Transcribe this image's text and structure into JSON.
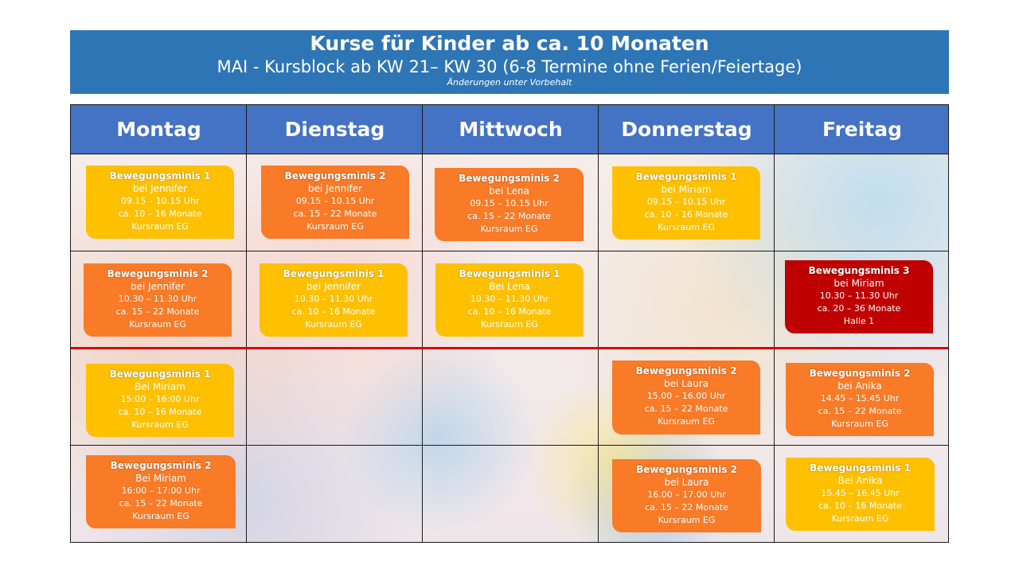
{
  "header": {
    "title": "Kurse für Kinder ab ca. 10 Monaten",
    "subtitle": "MAI - Kursblock ab KW 21– KW 30  (6-8 Termine ohne Ferien/Feiertage)",
    "note": "Änderungen unter Vorbehalt"
  },
  "days": [
    "Montag",
    "Dienstag",
    "Mittwoch",
    "Donnerstag",
    "Freitag"
  ],
  "colors": {
    "yellow": "#ffc000",
    "orange": "#f97a27",
    "red": "#c00000",
    "header": "#2e75b6",
    "day_header": "#4472c4"
  },
  "courses": [
    {
      "name": "Bewegungsminis 1",
      "trainer": "bei Jennifer",
      "time": "09.15 – 10.15 Uhr",
      "age": "ca. 10 – 16 Monate",
      "room": "Kursraum EG"
    },
    {
      "name": "Bewegungsminis 2",
      "trainer": "bei Jennifer",
      "time": "09.15 – 10.15 Uhr",
      "age": "ca. 15 – 22 Monate",
      "room": "Kursraum EG"
    },
    {
      "name": "Bewegungsminis 2",
      "trainer": "bei Lena",
      "time": "09.15 – 10.15 Uhr",
      "age": "ca. 15 – 22 Monate",
      "room": "Kursraum EG"
    },
    {
      "name": "Bewegungsminis 1",
      "trainer": "bei Miriam",
      "time": "09.15 – 10.15 Uhr",
      "age": "ca. 10 – 16 Monate",
      "room": "Kursraum EG"
    },
    {
      "name": "Bewegungsminis 2",
      "trainer": "bei Jennifer",
      "time": "10.30 – 11.30 Uhr",
      "age": "ca. 15 – 22 Monate",
      "room": "Kursraum EG"
    },
    {
      "name": "Bewegungsminis 1",
      "trainer": "bei Jennifer",
      "time": "10.30 – 11.30 Uhr",
      "age": "ca. 10 – 16 Monate",
      "room": "Kursraum EG"
    },
    {
      "name": "Bewegungsminis 1",
      "trainer": "Bei Lena",
      "time": "10.30 – 11.30 Uhr",
      "age": "ca. 10 – 16 Monate",
      "room": "Kursraum EG"
    },
    {
      "name": "Bewegungsminis 3",
      "trainer": "bei Miriam",
      "time": "10.30 – 11.30 Uhr",
      "age": "ca. 20 – 36 Monate",
      "room": "Halle 1"
    },
    {
      "name": "Bewegungsminis 1",
      "trainer": "Bei Miriam",
      "time": "15:00 – 16:00 Uhr",
      "age": "ca. 10 – 16 Monate",
      "room": "Kursraum EG"
    },
    {
      "name": "Bewegungsminis 2",
      "trainer": "bei Laura",
      "time": "15.00 – 16.00 Uhr",
      "age": "ca. 15 – 22 Monate",
      "room": "Kursraum EG"
    },
    {
      "name": "Bewegungsminis 2",
      "trainer": "bei Anika",
      "time": "14.45 – 15.45 Uhr",
      "age": "ca. 15 – 22 Monate",
      "room": "Kursraum EG"
    },
    {
      "name": "Bewegungsminis 2",
      "trainer": "Bei Miriam",
      "time": "16:00 – 17:00 Uhr",
      "age": "ca. 15 – 22 Monate",
      "room": "Kursraum EG"
    },
    {
      "name": "Bewegungsminis 2",
      "trainer": "bei Laura",
      "time": "16.00 – 17.00 Uhr",
      "age": "ca. 15 – 22 Monate",
      "room": "Kursraum EG"
    },
    {
      "name": "Bewegungsminis 1",
      "trainer": "Bei Anika",
      "time": "15.45 – 16.45 Uhr",
      "age": "ca. 10 – 16 Monate",
      "room": "Kursraum EG"
    }
  ]
}
